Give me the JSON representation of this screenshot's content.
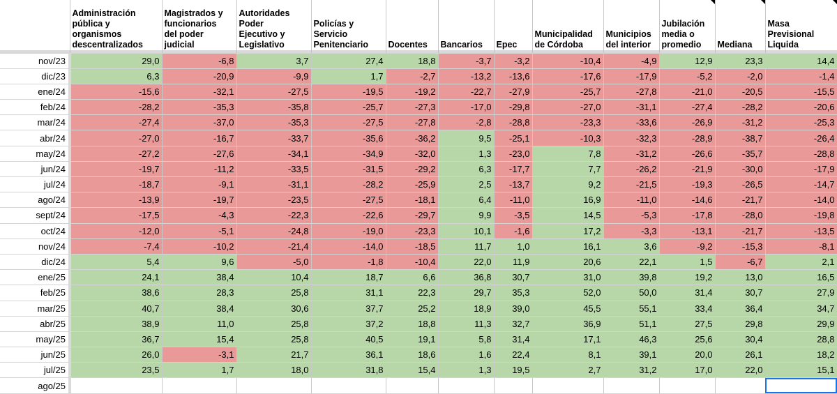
{
  "sheet": {
    "headers": [
      "Administración\npública y\norganismos\ndescentralizados",
      "Magistrados y\nfuncionarios\ndel poder\njudicial",
      "Autoridades\nPoder\nEjecutivo y\nLegislativo",
      "Policías y\nServicio\nPenitenciario",
      "Docentes",
      "Bancarios",
      "Epec",
      "Municipalidad\nde Córdoba",
      "Municipios\ndel interior",
      "Jubilación\nmedia o\npromedio",
      "Mediana",
      "Masa\nPrevisional\nLiquida"
    ],
    "rows": [
      {
        "label": "nov/23",
        "values": [
          "29,0",
          "-6,8",
          "3,7",
          "27,4",
          "18,8",
          "-3,7",
          "-3,2",
          "-10,4",
          "-4,9",
          "12,9",
          "23,3",
          "14,4"
        ]
      },
      {
        "label": "dic/23",
        "values": [
          "6,3",
          "-20,9",
          "-9,9",
          "1,7",
          "-2,7",
          "-13,2",
          "-13,6",
          "-17,6",
          "-17,9",
          "-5,2",
          "-2,0",
          "-1,4"
        ]
      },
      {
        "label": "ene/24",
        "values": [
          "-15,6",
          "-32,1",
          "-27,5",
          "-19,5",
          "-19,2",
          "-22,7",
          "-27,9",
          "-25,7",
          "-27,8",
          "-21,0",
          "-20,5",
          "-15,5"
        ]
      },
      {
        "label": "feb/24",
        "values": [
          "-28,2",
          "-35,3",
          "-35,8",
          "-25,7",
          "-27,3",
          "-17,0",
          "-29,8",
          "-27,0",
          "-31,1",
          "-27,4",
          "-28,2",
          "-20,6"
        ]
      },
      {
        "label": "mar/24",
        "values": [
          "-27,4",
          "-37,0",
          "-35,3",
          "-27,5",
          "-27,8",
          "-2,8",
          "-28,8",
          "-23,3",
          "-33,6",
          "-26,9",
          "-31,2",
          "-25,3"
        ]
      },
      {
        "label": "abr/24",
        "values": [
          "-27,0",
          "-16,7",
          "-33,7",
          "-35,6",
          "-36,2",
          "9,5",
          "-25,1",
          "-10,3",
          "-32,3",
          "-28,9",
          "-38,7",
          "-26,4"
        ]
      },
      {
        "label": "may/24",
        "values": [
          "-27,2",
          "-27,6",
          "-34,1",
          "-34,9",
          "-32,0",
          "1,3",
          "-23,0",
          "7,8",
          "-31,2",
          "-26,6",
          "-35,7",
          "-28,8"
        ]
      },
      {
        "label": "jun/24",
        "values": [
          "-19,7",
          "-11,2",
          "-33,5",
          "-31,5",
          "-29,2",
          "6,3",
          "-17,7",
          "7,7",
          "-26,2",
          "-21,9",
          "-30,0",
          "-17,9"
        ]
      },
      {
        "label": "jul/24",
        "values": [
          "-18,7",
          "-9,1",
          "-31,1",
          "-28,2",
          "-25,9",
          "2,5",
          "-13,7",
          "9,2",
          "-21,5",
          "-19,3",
          "-26,5",
          "-14,7"
        ]
      },
      {
        "label": "ago/24",
        "values": [
          "-13,9",
          "-19,7",
          "-23,5",
          "-27,5",
          "-18,1",
          "6,4",
          "-11,0",
          "16,9",
          "-11,0",
          "-14,6",
          "-21,7",
          "-14,0"
        ]
      },
      {
        "label": "sept/24",
        "values": [
          "-17,5",
          "-4,3",
          "-22,3",
          "-22,6",
          "-29,7",
          "9,9",
          "-3,5",
          "14,5",
          "-5,3",
          "-17,8",
          "-28,0",
          "-19,8"
        ]
      },
      {
        "label": "oct/24",
        "values": [
          "-12,0",
          "-5,1",
          "-24,8",
          "-19,0",
          "-23,3",
          "10,1",
          "-1,6",
          "17,2",
          "-3,3",
          "-13,1",
          "-21,7",
          "-13,5"
        ]
      },
      {
        "label": "nov/24",
        "values": [
          "-7,4",
          "-10,2",
          "-21,4",
          "-14,0",
          "-18,5",
          "11,7",
          "1,0",
          "16,1",
          "3,6",
          "-9,2",
          "-15,3",
          "-8,1"
        ]
      },
      {
        "label": "dic/24",
        "values": [
          "5,4",
          "9,6",
          "-5,0",
          "-1,8",
          "-10,4",
          "22,0",
          "11,9",
          "20,6",
          "22,1",
          "1,5",
          "-6,7",
          "2,1"
        ]
      },
      {
        "label": "ene/25",
        "values": [
          "24,1",
          "38,4",
          "10,4",
          "18,7",
          "6,6",
          "36,8",
          "30,7",
          "31,0",
          "39,8",
          "19,2",
          "13,0",
          "16,5"
        ]
      },
      {
        "label": "feb/25",
        "values": [
          "38,6",
          "28,3",
          "25,8",
          "31,1",
          "22,3",
          "29,7",
          "35,3",
          "52,0",
          "50,0",
          "31,4",
          "30,7",
          "27,9"
        ]
      },
      {
        "label": "mar/25",
        "values": [
          "40,7",
          "38,4",
          "30,6",
          "37,7",
          "25,2",
          "18,9",
          "39,0",
          "45,5",
          "55,1",
          "33,4",
          "36,4",
          "34,7"
        ]
      },
      {
        "label": "abr/25",
        "values": [
          "38,9",
          "11,0",
          "25,8",
          "37,2",
          "18,8",
          "11,3",
          "32,7",
          "36,9",
          "51,1",
          "27,5",
          "29,8",
          "29,9"
        ]
      },
      {
        "label": "may/25",
        "values": [
          "36,7",
          "15,4",
          "25,8",
          "40,5",
          "19,1",
          "5,8",
          "31,4",
          "17,1",
          "46,3",
          "25,6",
          "30,4",
          "28,8"
        ]
      },
      {
        "label": "jun/25",
        "values": [
          "26,0",
          "-3,1",
          "21,7",
          "36,1",
          "18,6",
          "1,6",
          "22,4",
          "8,1",
          "39,1",
          "20,0",
          "26,1",
          "18,2"
        ]
      },
      {
        "label": "jul/25",
        "values": [
          "23,5",
          "1,7",
          "18,0",
          "31,8",
          "15,4",
          "1,3",
          "19,5",
          "2,7",
          "31,2",
          "17,0",
          "22,0",
          "15,1"
        ]
      },
      {
        "label": "ago/25",
        "values": [
          "",
          "",
          "",
          "",
          "",
          "",
          "",
          "",
          "",
          "",
          "",
          ""
        ]
      }
    ],
    "colors": {
      "positive": "#b7d7a8",
      "negative": "#ea9999"
    }
  }
}
